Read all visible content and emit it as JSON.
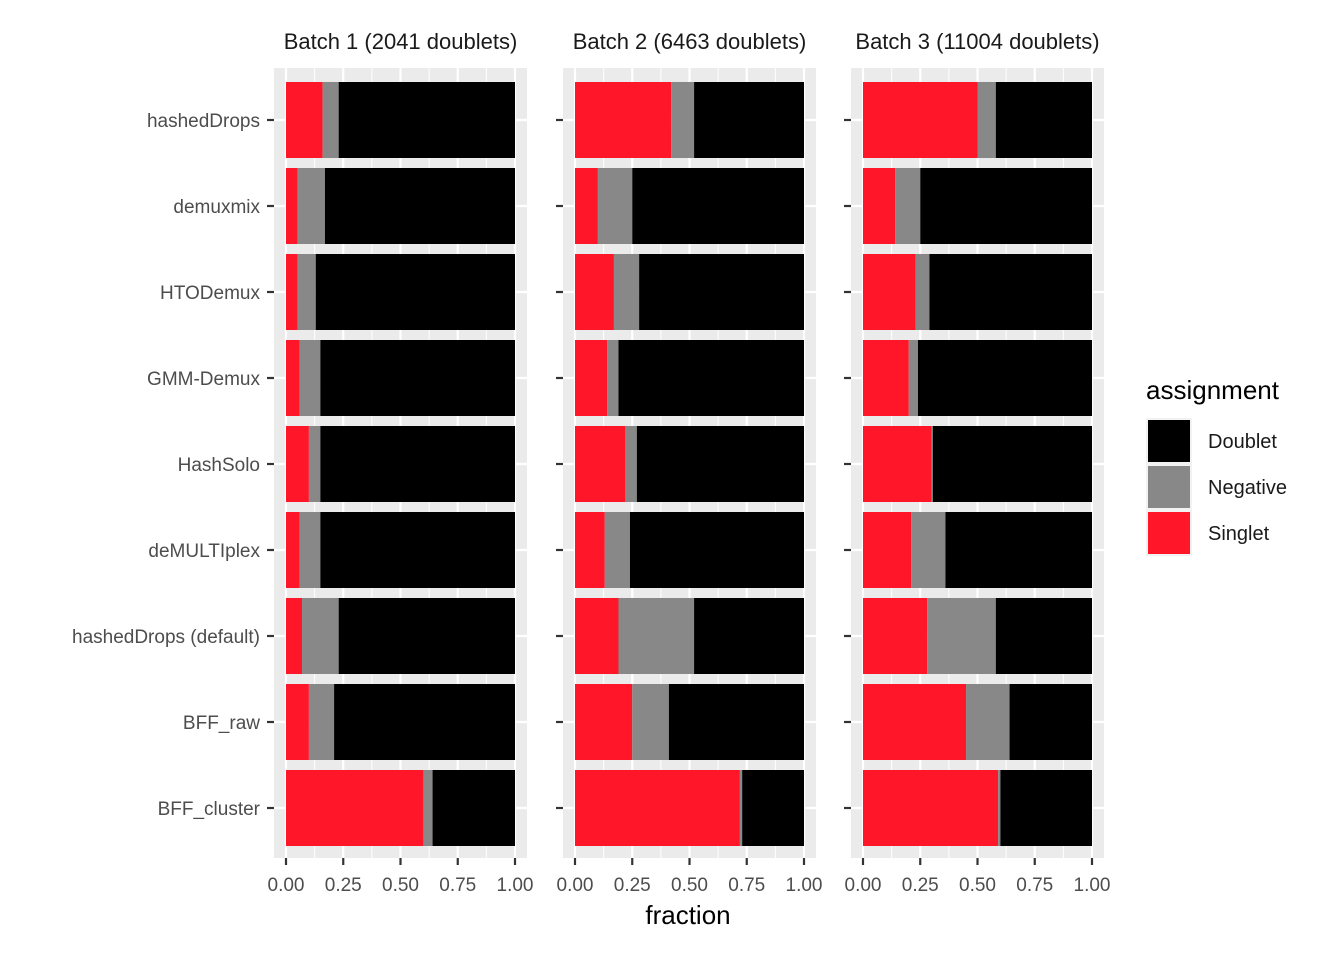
{
  "chart_data": {
    "type": "bar",
    "orientation": "horizontal",
    "stacked": true,
    "xlabel": "fraction",
    "ylabel": "",
    "xlim": [
      0,
      1
    ],
    "x_ticks": [
      "0.00",
      "0.25",
      "0.50",
      "0.75",
      "1.00"
    ],
    "grid": true,
    "legend_position": "right",
    "legend": {
      "title": "assignment",
      "entries": [
        {
          "name": "Doublet",
          "color": "#000000"
        },
        {
          "name": "Negative",
          "color": "#888888"
        },
        {
          "name": "Singlet",
          "color": "#ff1628"
        }
      ]
    },
    "categories": [
      "hashedDrops",
      "demuxmix",
      "HTODemux",
      "GMM-Demux",
      "HashSolo",
      "deMULTIplex",
      "hashedDrops (default)",
      "BFF_raw",
      "BFF_cluster"
    ],
    "stack_order": [
      "Singlet",
      "Negative",
      "Doublet"
    ],
    "panels": [
      {
        "title": "Batch 1 (2041 doublets)",
        "singlet": [
          0.16,
          0.05,
          0.05,
          0.06,
          0.1,
          0.06,
          0.07,
          0.1,
          0.6
        ],
        "negative": [
          0.07,
          0.12,
          0.08,
          0.09,
          0.05,
          0.09,
          0.16,
          0.11,
          0.04
        ],
        "doublet": [
          0.77,
          0.83,
          0.87,
          0.85,
          0.85,
          0.85,
          0.77,
          0.79,
          0.36
        ]
      },
      {
        "title": "Batch 2 (6463 doublets)",
        "singlet": [
          0.42,
          0.1,
          0.17,
          0.14,
          0.22,
          0.13,
          0.19,
          0.25,
          0.72
        ],
        "negative": [
          0.1,
          0.15,
          0.11,
          0.05,
          0.05,
          0.11,
          0.33,
          0.16,
          0.01
        ],
        "doublet": [
          0.48,
          0.75,
          0.72,
          0.81,
          0.73,
          0.76,
          0.48,
          0.59,
          0.27
        ]
      },
      {
        "title": "Batch 3 (11004 doublets)",
        "singlet": [
          0.5,
          0.14,
          0.23,
          0.2,
          0.3,
          0.21,
          0.28,
          0.45,
          0.59
        ],
        "negative": [
          0.08,
          0.11,
          0.06,
          0.04,
          0.005,
          0.15,
          0.3,
          0.19,
          0.01
        ],
        "doublet": [
          0.42,
          0.75,
          0.71,
          0.76,
          0.695,
          0.64,
          0.42,
          0.36,
          0.4
        ]
      }
    ]
  }
}
